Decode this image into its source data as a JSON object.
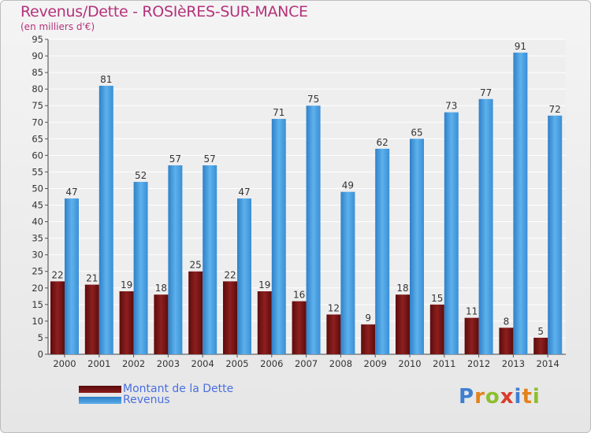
{
  "title": "Revenus/Dette - ROSIèRES-SUR-MANCE",
  "subtitle": "(en milliers d'€)",
  "logo_text": "Proxiti",
  "colors": {
    "dette": "#7a1414",
    "revenus": "#3f93d8",
    "title": "#b5327a",
    "legend_text": "#4a6fe0"
  },
  "chart_data": {
    "type": "bar",
    "categories": [
      "2000",
      "2001",
      "2002",
      "2003",
      "2004",
      "2005",
      "2006",
      "2007",
      "2008",
      "2009",
      "2010",
      "2011",
      "2012",
      "2013",
      "2014"
    ],
    "series": [
      {
        "name": "Montant de la Dette",
        "values": [
          22,
          21,
          19,
          18,
          25,
          22,
          19,
          16,
          12,
          9,
          18,
          15,
          11,
          8,
          5
        ]
      },
      {
        "name": "Revenus",
        "values": [
          47,
          81,
          52,
          57,
          57,
          47,
          71,
          75,
          49,
          62,
          65,
          73,
          77,
          91,
          72
        ]
      }
    ],
    "ylim": [
      0,
      95
    ],
    "yticks": [
      0,
      5,
      10,
      15,
      20,
      25,
      30,
      35,
      40,
      45,
      50,
      55,
      60,
      65,
      70,
      75,
      80,
      85,
      90,
      95
    ],
    "grid": true,
    "legend_position": "bottom-left"
  }
}
